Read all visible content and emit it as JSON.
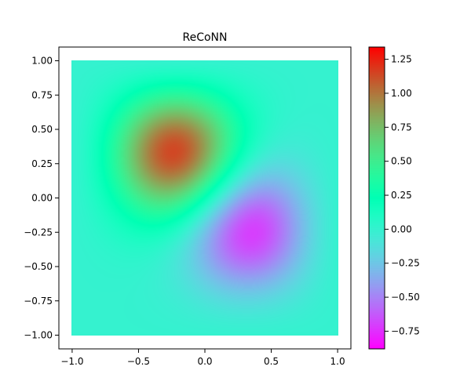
{
  "chart_data": {
    "type": "heatmap",
    "title": "ReCoNN",
    "xlabel": "",
    "ylabel": "",
    "xlim": [
      -1.1,
      1.1
    ],
    "ylim": [
      -1.1,
      1.1
    ],
    "domain": {
      "x": [
        -1,
        1
      ],
      "y": [
        -1,
        1
      ]
    },
    "x_ticks": [
      -1.0,
      -0.5,
      0.0,
      0.5,
      1.0
    ],
    "x_tick_labels": [
      "−1.0",
      "−0.5",
      "0.0",
      "0.5",
      "1.0"
    ],
    "y_ticks": [
      1.0,
      0.75,
      0.5,
      0.25,
      0.0,
      -0.25,
      -0.5,
      -0.75,
      -1.0
    ],
    "y_tick_labels": [
      "1.00",
      "0.75",
      "0.50",
      "0.25",
      "0.00",
      "−0.25",
      "−0.50",
      "−0.75",
      "−1.00"
    ],
    "colormap": "rainbow",
    "colorbar": {
      "vmin": -0.88,
      "vmax": 1.34,
      "ticks": [
        1.25,
        1.0,
        0.75,
        0.5,
        0.25,
        0.0,
        -0.25,
        -0.5,
        -0.75
      ],
      "tick_labels": [
        "1.25",
        "1.00",
        "0.75",
        "0.50",
        "0.25",
        "0.00",
        "−0.25",
        "−0.50",
        "−0.75"
      ]
    },
    "field_peaks": [
      {
        "x": -0.3,
        "y": 0.45,
        "value": 1.34
      },
      {
        "x": 0.45,
        "y": -0.3,
        "value": -0.88
      }
    ],
    "boundary_value": 0.0,
    "grid": false
  }
}
